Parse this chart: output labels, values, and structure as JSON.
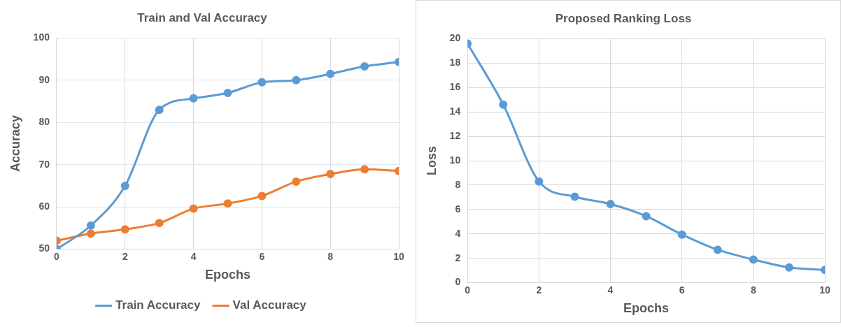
{
  "chart_data": [
    {
      "type": "line",
      "title": "Train and Val Accuracy",
      "xlabel": "Epochs",
      "ylabel": "Accuracy",
      "x": [
        0,
        1,
        2,
        3,
        4,
        5,
        6,
        7,
        8,
        9,
        10
      ],
      "series": [
        {
          "name": "Train Accuracy",
          "color": "#5b9bd5",
          "values": [
            50,
            55.6,
            65,
            83,
            85.7,
            87,
            89.5,
            90,
            91.5,
            93.3,
            94.3
          ]
        },
        {
          "name": "Val Accuracy",
          "color": "#ed7d31",
          "values": [
            52,
            53.7,
            54.7,
            56.2,
            59.6,
            60.8,
            62.6,
            66,
            67.8,
            68.9,
            68.5
          ]
        }
      ],
      "xlim": [
        0,
        10
      ],
      "xticks": [
        0,
        2,
        4,
        6,
        8,
        10
      ],
      "ylim": [
        50,
        100
      ],
      "yticks": [
        50,
        60,
        70,
        80,
        90,
        100
      ],
      "grid": true,
      "legend": "bottom",
      "marker": "circle"
    },
    {
      "type": "line",
      "title": "Proposed Ranking Loss",
      "xlabel": "Epochs",
      "ylabel": "Loss",
      "x": [
        0,
        1,
        2,
        3,
        4,
        5,
        6,
        7,
        8,
        9,
        10
      ],
      "series": [
        {
          "color": "#5b9bd5",
          "values": [
            19.6,
            14.6,
            8.3,
            7.05,
            6.45,
            5.45,
            3.95,
            2.7,
            1.9,
            1.25,
            1.05
          ]
        }
      ],
      "xlim": [
        0,
        10
      ],
      "xticks": [
        0,
        2,
        4,
        6,
        8,
        10
      ],
      "ylim": [
        0,
        20
      ],
      "yticks": [
        0,
        2,
        4,
        6,
        8,
        10,
        12,
        14,
        16,
        18,
        20
      ],
      "grid": true,
      "legend": false,
      "marker": "circle"
    }
  ]
}
